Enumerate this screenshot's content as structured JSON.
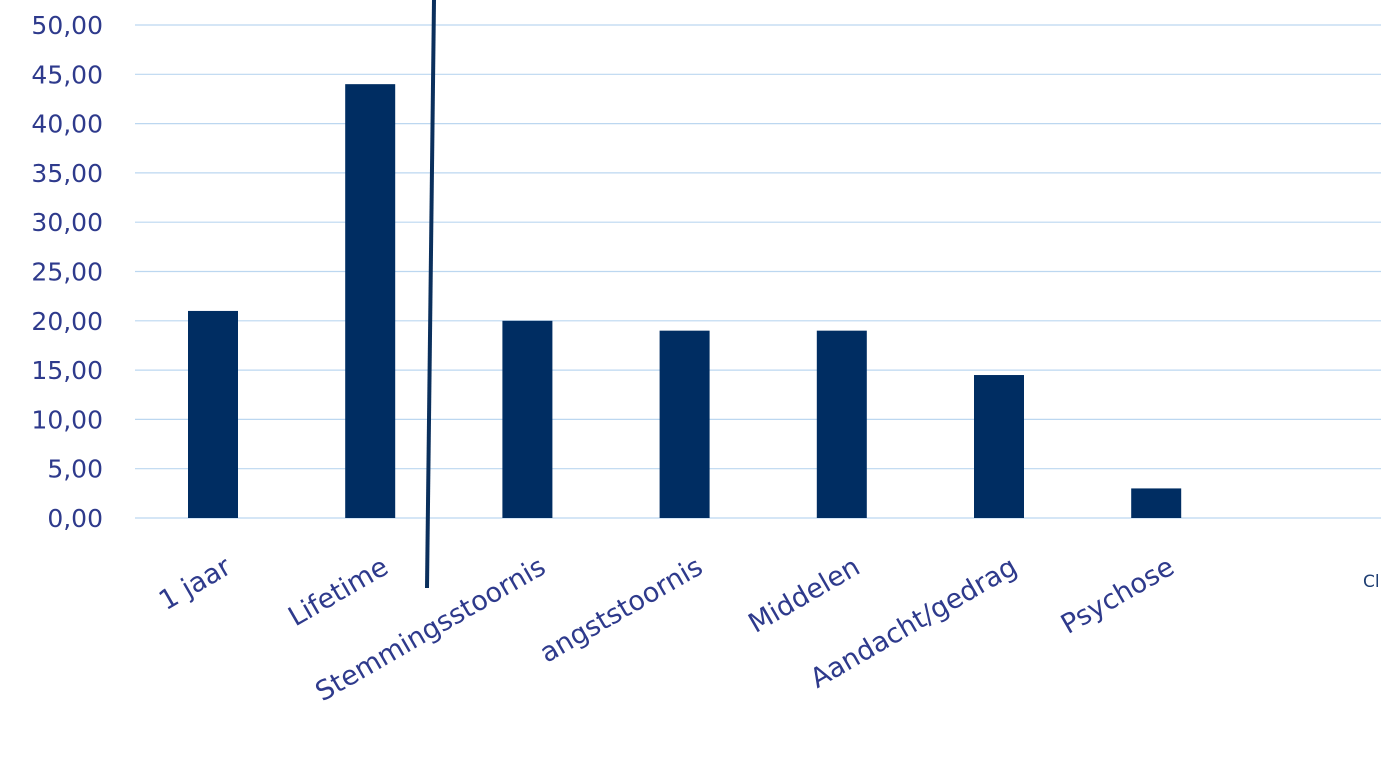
{
  "chart_data": {
    "type": "bar",
    "categories": [
      "1 jaar",
      "Lifetime",
      "Stemmingsstoornis",
      "angststoornis",
      "Middelen",
      "Aandacht/gedrag",
      "Psychose"
    ],
    "values": [
      21,
      44,
      20,
      19,
      19,
      14.5,
      3
    ],
    "yticks": [
      "0,00",
      "5,00",
      "10,00",
      "15,00",
      "20,00",
      "25,00",
      "30,00",
      "35,00",
      "40,00",
      "45,00",
      "50,00"
    ],
    "ylim": [
      0,
      50
    ],
    "grid": true,
    "bar_color": "#002d62",
    "divider_color": "#0a2f5c",
    "side_note": "Cl",
    "title": "",
    "xlabel": "",
    "ylabel": ""
  }
}
